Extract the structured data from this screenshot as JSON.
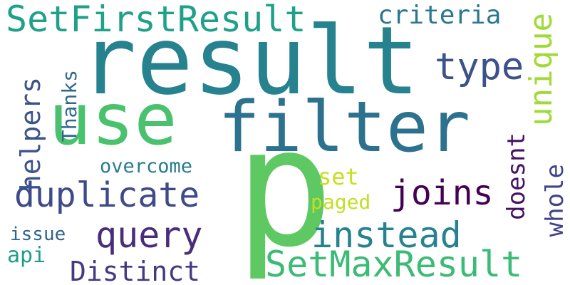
{
  "words": {
    "result": {
      "text": "result",
      "color": "#25828e"
    },
    "p": {
      "text": "p",
      "color": "#5ec962"
    },
    "filter": {
      "text": "filter",
      "color": "#2c728e"
    },
    "use": {
      "text": "use",
      "color": "#4ac16d"
    },
    "setfirstresult": {
      "text": "SetFirstResult",
      "color": "#1fa088"
    },
    "setmaxresult": {
      "text": "SetMaxResult",
      "color": "#3bbb75"
    },
    "duplicate": {
      "text": "duplicate",
      "color": "#3e4a89"
    },
    "query": {
      "text": "query",
      "color": "#472d7b"
    },
    "instead": {
      "text": "instead",
      "color": "#26828e"
    },
    "joins": {
      "text": "joins",
      "color": "#440154"
    },
    "type": {
      "text": "type",
      "color": "#3b528b"
    },
    "unique": {
      "text": "unique",
      "color": "#a0da39"
    },
    "criteria": {
      "text": "criteria",
      "color": "#2a788e"
    },
    "distinct": {
      "text": "Distinct",
      "color": "#443a83"
    },
    "helpers": {
      "text": "helpers",
      "color": "#3b528b"
    },
    "thanks": {
      "text": "Thanks",
      "color": "#31688e"
    },
    "overcome": {
      "text": "overcome",
      "color": "#287c8e"
    },
    "set": {
      "text": "set",
      "color": "#c8e020"
    },
    "paged": {
      "text": "paged",
      "color": "#c2df23"
    },
    "doesnt": {
      "text": "doesnt",
      "color": "#471164"
    },
    "whole": {
      "text": "whole",
      "color": "#414487"
    },
    "issue": {
      "text": "issue",
      "color": "#33638d"
    },
    "api": {
      "text": "api",
      "color": "#1f9e89"
    }
  }
}
